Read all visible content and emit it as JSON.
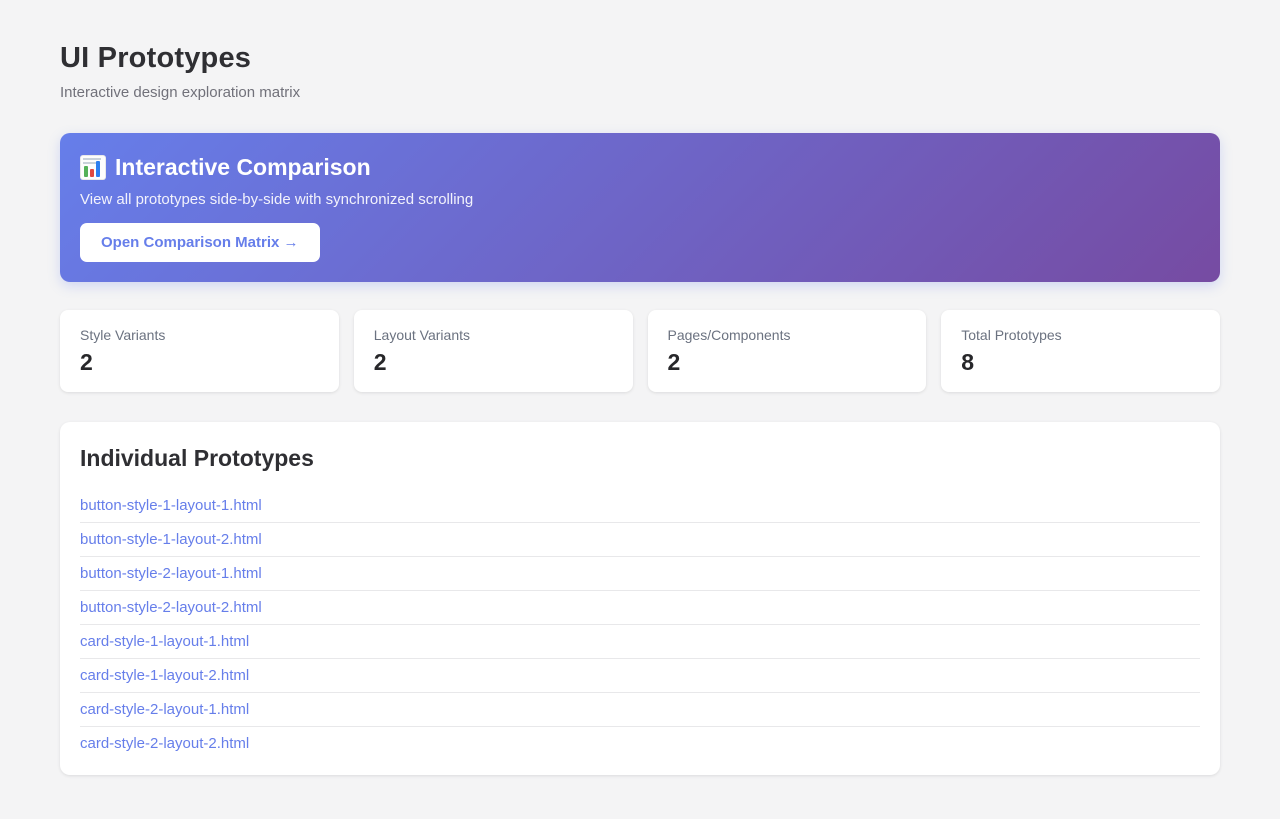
{
  "page": {
    "title": "UI Prototypes",
    "subtitle": "Interactive design exploration matrix"
  },
  "banner": {
    "icon": "bar-chart-icon",
    "title": "Interactive Comparison",
    "description": "View all prototypes side-by-side with synchronized scrolling",
    "button_label": "Open Comparison Matrix →"
  },
  "stats": [
    {
      "label": "Style Variants",
      "value": "2"
    },
    {
      "label": "Layout Variants",
      "value": "2"
    },
    {
      "label": "Pages/Components",
      "value": "2"
    },
    {
      "label": "Total Prototypes",
      "value": "8"
    }
  ],
  "prototypes": {
    "title": "Individual Prototypes",
    "links": [
      {
        "label": "button-style-1-layout-1.html"
      },
      {
        "label": "button-style-1-layout-2.html"
      },
      {
        "label": "button-style-2-layout-1.html"
      },
      {
        "label": "button-style-2-layout-2.html"
      },
      {
        "label": "card-style-1-layout-1.html"
      },
      {
        "label": "card-style-1-layout-2.html"
      },
      {
        "label": "card-style-2-layout-1.html"
      },
      {
        "label": "card-style-2-layout-2.html"
      }
    ]
  },
  "colors": {
    "accent": "#667eea",
    "gradient_start": "#667eea",
    "gradient_end": "#764ba2",
    "background": "#f4f4f5",
    "link": "#667eea"
  }
}
